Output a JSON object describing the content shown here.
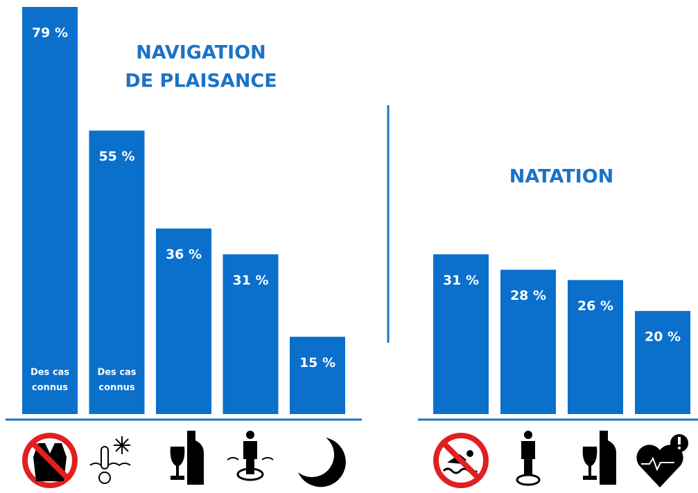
{
  "chart_data": [
    {
      "type": "bar",
      "title": [
        "NAVIGATION",
        "DE PLAISANCE"
      ],
      "values": [
        79,
        55,
        36,
        31,
        15
      ],
      "value_labels": [
        "79 %",
        "55 %",
        "36 %",
        "31 %",
        "15 %"
      ],
      "bar_notes": [
        [
          "Des cas",
          "connus"
        ],
        [
          "Des cas",
          "connus"
        ],
        null,
        null,
        null
      ],
      "color": "#0b6fcc"
    },
    {
      "type": "bar",
      "title": [
        "NATATION"
      ],
      "values": [
        31,
        28,
        26,
        20
      ],
      "value_labels": [
        "31 %",
        "28 %",
        "26 %",
        "20 %"
      ],
      "color": "#0b6fcc"
    }
  ]
}
